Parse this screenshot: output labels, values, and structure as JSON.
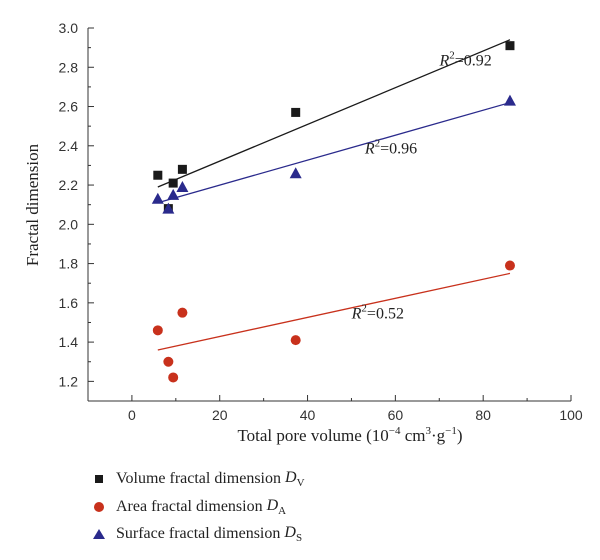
{
  "chart_data": {
    "type": "scatter",
    "title": "",
    "xlabel": {
      "text": "Total pore volume (10",
      "sup1": "−4",
      "mid": " cm",
      "sup2": "3",
      "tail": "·g",
      "sup3": "−1",
      "end": ")"
    },
    "ylabel": "Fractal dimension",
    "xlim": [
      -10,
      100
    ],
    "ylim": [
      1.1,
      3.0
    ],
    "xticks": [
      0,
      20,
      40,
      60,
      80,
      100
    ],
    "yticks": [
      1.2,
      1.4,
      1.6,
      1.8,
      2.0,
      2.2,
      2.4,
      2.6,
      2.8,
      3.0
    ],
    "xtick_labels": [
      "0",
      "20",
      "40",
      "60",
      "80",
      "100"
    ],
    "ytick_labels": [
      "1.2",
      "1.4",
      "1.6",
      "1.8",
      "2.0",
      "2.2",
      "2.4",
      "2.6",
      "2.8",
      "3.0"
    ],
    "series": [
      {
        "key": "DV",
        "legend_text": "Volume fractal dimension",
        "var": "D",
        "sub": "V",
        "marker": "square",
        "color": "#1a1a1a",
        "x": [
          5.9,
          8.3,
          9.4,
          11.5,
          37.3,
          86.1
        ],
        "y": [
          2.25,
          2.08,
          2.21,
          2.28,
          2.57,
          2.91
        ],
        "fit": {
          "x": [
            5.9,
            86.1
          ],
          "y": [
            2.19,
            2.94
          ]
        },
        "r2_label": "0.92"
      },
      {
        "key": "DA",
        "legend_text": "Area fractal dimension",
        "var": "D",
        "sub": "A",
        "marker": "circle",
        "color": "#c8311c",
        "x": [
          5.9,
          8.3,
          9.4,
          11.5,
          37.3,
          86.1
        ],
        "y": [
          1.46,
          1.3,
          1.22,
          1.55,
          1.41,
          1.79
        ],
        "fit": {
          "x": [
            5.9,
            86.1
          ],
          "y": [
            1.36,
            1.75
          ]
        },
        "r2_label": "0.52"
      },
      {
        "key": "DS",
        "legend_text": "Surface fractal dimension",
        "var": "D",
        "sub": "S",
        "marker": "triangle",
        "color": "#2a2a8c",
        "x": [
          5.9,
          8.3,
          9.4,
          11.5,
          37.3,
          86.1
        ],
        "y": [
          2.13,
          2.08,
          2.15,
          2.19,
          2.26,
          2.63
        ],
        "fit": {
          "x": [
            5.9,
            86.1
          ],
          "y": [
            2.11,
            2.62
          ]
        },
        "r2_label": "0.96"
      }
    ],
    "annotations": [
      {
        "series": "DV",
        "at": [
          76,
          2.81
        ],
        "prefix": "R",
        "sup": "2",
        "eq": "=",
        "value": "0.92"
      },
      {
        "series": "DS",
        "at": [
          59,
          2.36
        ],
        "prefix": "R",
        "sup": "2",
        "eq": "=",
        "value": "0.96"
      },
      {
        "series": "DA",
        "at": [
          56,
          1.52
        ],
        "prefix": "R",
        "sup": "2",
        "eq": "=",
        "value": "0.52"
      }
    ],
    "legend_position": "bottom-left",
    "grid": false
  }
}
